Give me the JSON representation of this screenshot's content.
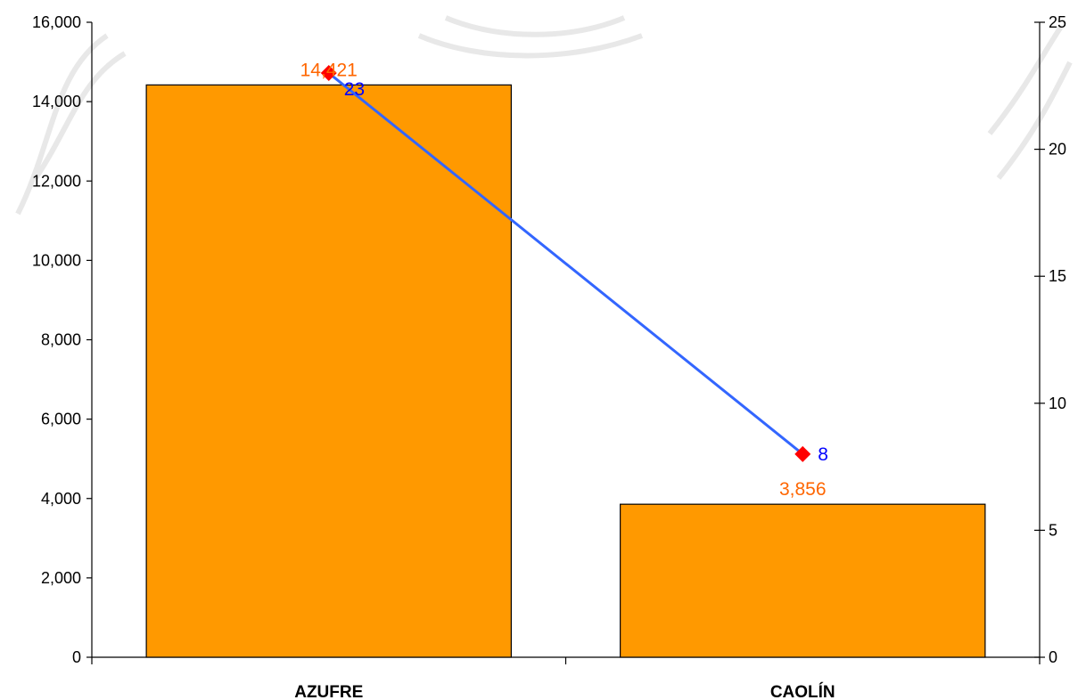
{
  "chart_data": {
    "type": "bar",
    "title": "",
    "xlabel": "",
    "ylabel": "",
    "categories": [
      "AZUFRE",
      "CAOLÍN"
    ],
    "series": [
      {
        "type": "bar",
        "axis": "left",
        "values": [
          14421,
          3856
        ],
        "labels": [
          "14,421",
          "3,856"
        ],
        "color": "#ff9900",
        "label_color": "#ff6600"
      },
      {
        "type": "line",
        "axis": "right",
        "values": [
          23,
          8
        ],
        "labels": [
          "23",
          "8"
        ],
        "color": "#3366ff",
        "marker_color": "#ff0000",
        "label_color": "#0000ff"
      }
    ],
    "ylim": [
      0,
      16000
    ],
    "y_ticks": [
      0,
      2000,
      4000,
      6000,
      8000,
      10000,
      12000,
      14000,
      16000
    ],
    "y_tick_labels": [
      "0",
      "2,000",
      "4,000",
      "6,000",
      "8,000",
      "10,000",
      "12,000",
      "14,000",
      "16,000"
    ],
    "y2lim": [
      0,
      25
    ],
    "y2_ticks": [
      0,
      5,
      10,
      15,
      20,
      25
    ],
    "y2_tick_labels": [
      "0",
      "5",
      "10",
      "15",
      "20",
      "25"
    ],
    "grid": false,
    "legend": "none"
  }
}
